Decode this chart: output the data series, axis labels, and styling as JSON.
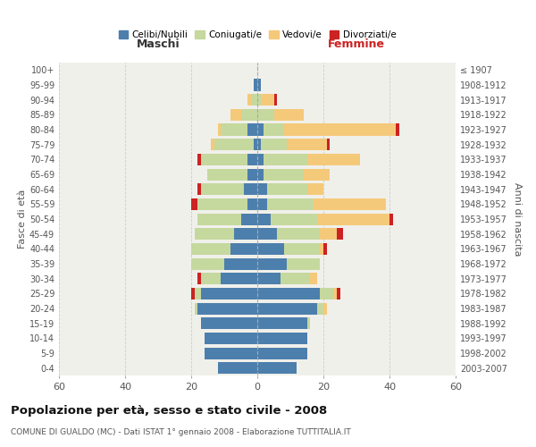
{
  "age_groups": [
    "0-4",
    "5-9",
    "10-14",
    "15-19",
    "20-24",
    "25-29",
    "30-34",
    "35-39",
    "40-44",
    "45-49",
    "50-54",
    "55-59",
    "60-64",
    "65-69",
    "70-74",
    "75-79",
    "80-84",
    "85-89",
    "90-94",
    "95-99",
    "100+"
  ],
  "birth_years": [
    "2003-2007",
    "1998-2002",
    "1993-1997",
    "1988-1992",
    "1983-1987",
    "1978-1982",
    "1973-1977",
    "1968-1972",
    "1963-1967",
    "1958-1962",
    "1953-1957",
    "1948-1952",
    "1943-1947",
    "1938-1942",
    "1933-1937",
    "1928-1932",
    "1923-1927",
    "1918-1922",
    "1913-1917",
    "1908-1912",
    "≤ 1907"
  ],
  "male": {
    "celibe": [
      12,
      16,
      16,
      17,
      18,
      17,
      11,
      10,
      8,
      7,
      5,
      3,
      4,
      3,
      3,
      1,
      3,
      0,
      0,
      1,
      0
    ],
    "coniugato": [
      0,
      0,
      0,
      0,
      1,
      2,
      6,
      10,
      12,
      12,
      13,
      15,
      13,
      12,
      14,
      12,
      8,
      5,
      2,
      0,
      0
    ],
    "vedovo": [
      0,
      0,
      0,
      0,
      0,
      0,
      0,
      0,
      0,
      0,
      0,
      0,
      0,
      0,
      0,
      1,
      1,
      3,
      1,
      0,
      0
    ],
    "divorziato": [
      0,
      0,
      0,
      0,
      0,
      1,
      1,
      0,
      0,
      0,
      0,
      2,
      1,
      0,
      1,
      0,
      0,
      0,
      0,
      0,
      0
    ]
  },
  "female": {
    "nubile": [
      12,
      15,
      15,
      15,
      18,
      19,
      7,
      9,
      8,
      6,
      4,
      3,
      3,
      2,
      2,
      1,
      2,
      0,
      0,
      1,
      0
    ],
    "coniugata": [
      0,
      0,
      0,
      1,
      2,
      4,
      9,
      10,
      11,
      13,
      14,
      14,
      12,
      12,
      13,
      8,
      6,
      5,
      1,
      0,
      0
    ],
    "vedova": [
      0,
      0,
      0,
      0,
      1,
      1,
      2,
      0,
      1,
      5,
      22,
      22,
      5,
      8,
      16,
      12,
      34,
      9,
      4,
      0,
      0
    ],
    "divorziata": [
      0,
      0,
      0,
      0,
      0,
      1,
      0,
      0,
      1,
      2,
      1,
      0,
      0,
      0,
      0,
      1,
      1,
      0,
      1,
      0,
      0
    ]
  },
  "colors": {
    "celibe": "#4d7fad",
    "coniugato": "#c5d89e",
    "vedovo": "#f5c97a",
    "divorziato": "#cc2222"
  },
  "legend_labels": [
    "Celibi/Nubili",
    "Coniugati/e",
    "Vedovi/e",
    "Divorziati/e"
  ],
  "title": "Popolazione per età, sesso e stato civile - 2008",
  "subtitle": "COMUNE DI GUALDO (MC) - Dati ISTAT 1° gennaio 2008 - Elaborazione TUTTITALIA.IT",
  "xlabel_left": "Maschi",
  "xlabel_right": "Femmine",
  "ylabel_left": "Fasce di età",
  "ylabel_right": "Anni di nascita",
  "xlim": 60,
  "bg_color": "#f0f0eb"
}
